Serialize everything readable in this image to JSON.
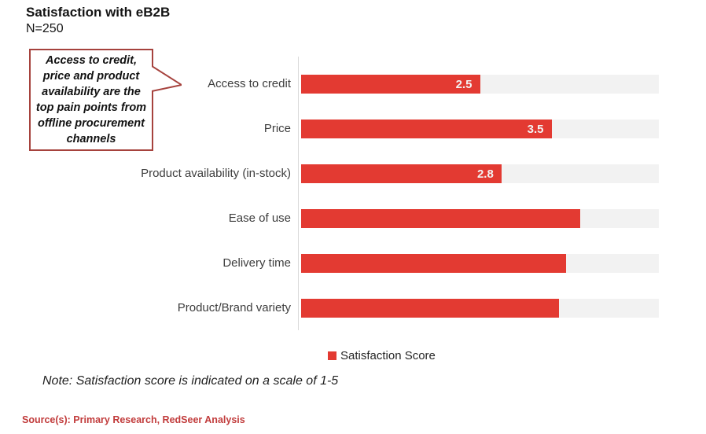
{
  "header": {
    "title": "Satisfaction with eB2B",
    "sample_size": "N=250"
  },
  "callout": {
    "text": "Access to credit, price and product availability are the top pain points from offline procurement channels"
  },
  "chart_data": {
    "type": "bar",
    "orientation": "horizontal",
    "title": "Satisfaction with eB2B",
    "subtitle": "N=250",
    "categories": [
      "Access to credit",
      "Price",
      "Product availability (in-stock)",
      "Ease of use",
      "Delivery time",
      "Product/Brand variety"
    ],
    "series": [
      {
        "name": "Satisfaction Score",
        "values": [
          2.5,
          3.5,
          2.8,
          3.9,
          3.7,
          3.6
        ]
      }
    ],
    "value_labels": [
      "2.5",
      "3.5",
      "2.8",
      "",
      "",
      ""
    ],
    "xlim": [
      0,
      5
    ],
    "grid": false,
    "legend": {
      "label": "Satisfaction Score",
      "position": "bottom"
    }
  },
  "note": "Note: Satisfaction score is indicated on a scale of 1-5",
  "source": "Source(s): Primary Research, RedSeer Analysis",
  "colors": {
    "bar": "#e33a32",
    "track": "#f2f2f2",
    "value_label": "#f2f2f2",
    "callout_border": "#a6423d",
    "axis_line": "#d9d9d9",
    "source_text": "#c13b3b"
  }
}
